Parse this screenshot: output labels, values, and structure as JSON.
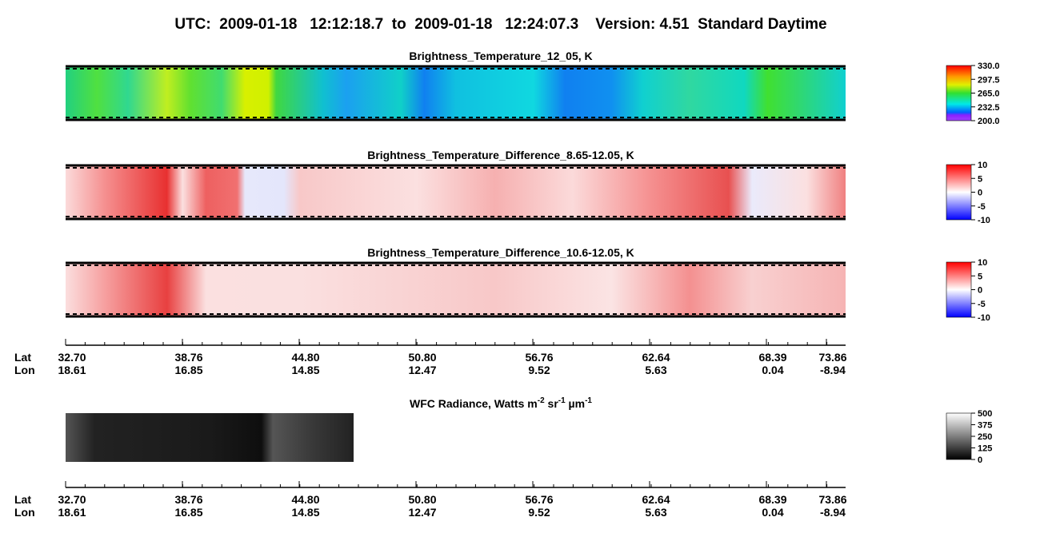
{
  "header": {
    "title": "UTC:  2009-01-18   12:12:18.7  to  2009-01-18   12:24:07.3    Version: 4.51  Standard Daytime"
  },
  "panels": [
    {
      "title": "Brightness_Temperature_12_05, K",
      "colorbar_ticks": [
        "330.0",
        "297.5",
        "265.0",
        "232.5",
        "200.0"
      ]
    },
    {
      "title": "Brightness_Temperature_Difference_8.65-12.05, K",
      "colorbar_ticks": [
        "10",
        "5",
        "0",
        "-5",
        "-10"
      ]
    },
    {
      "title": "Brightness_Temperature_Difference_10.6-12.05, K",
      "colorbar_ticks": [
        "10",
        "5",
        "0",
        "-5",
        "-10"
      ]
    }
  ],
  "axis": {
    "row_labels": [
      "Lat",
      "Lon"
    ],
    "ticks": [
      {
        "lat": "32.70",
        "lon": "18.61"
      },
      {
        "lat": "38.76",
        "lon": "16.85"
      },
      {
        "lat": "44.80",
        "lon": "14.85"
      },
      {
        "lat": "50.80",
        "lon": "12.47"
      },
      {
        "lat": "56.76",
        "lon": "9.52"
      },
      {
        "lat": "62.64",
        "lon": "5.63"
      },
      {
        "lat": "68.39",
        "lon": "0.04"
      },
      {
        "lat": "73.86",
        "lon": "-8.94"
      }
    ]
  },
  "wfc": {
    "title_parts": [
      "WFC Radiance, Watts m",
      "-2",
      " sr",
      "-1",
      " µm",
      "-1"
    ],
    "colorbar_ticks": [
      "500",
      "375",
      "250",
      "125",
      "0"
    ]
  }
}
